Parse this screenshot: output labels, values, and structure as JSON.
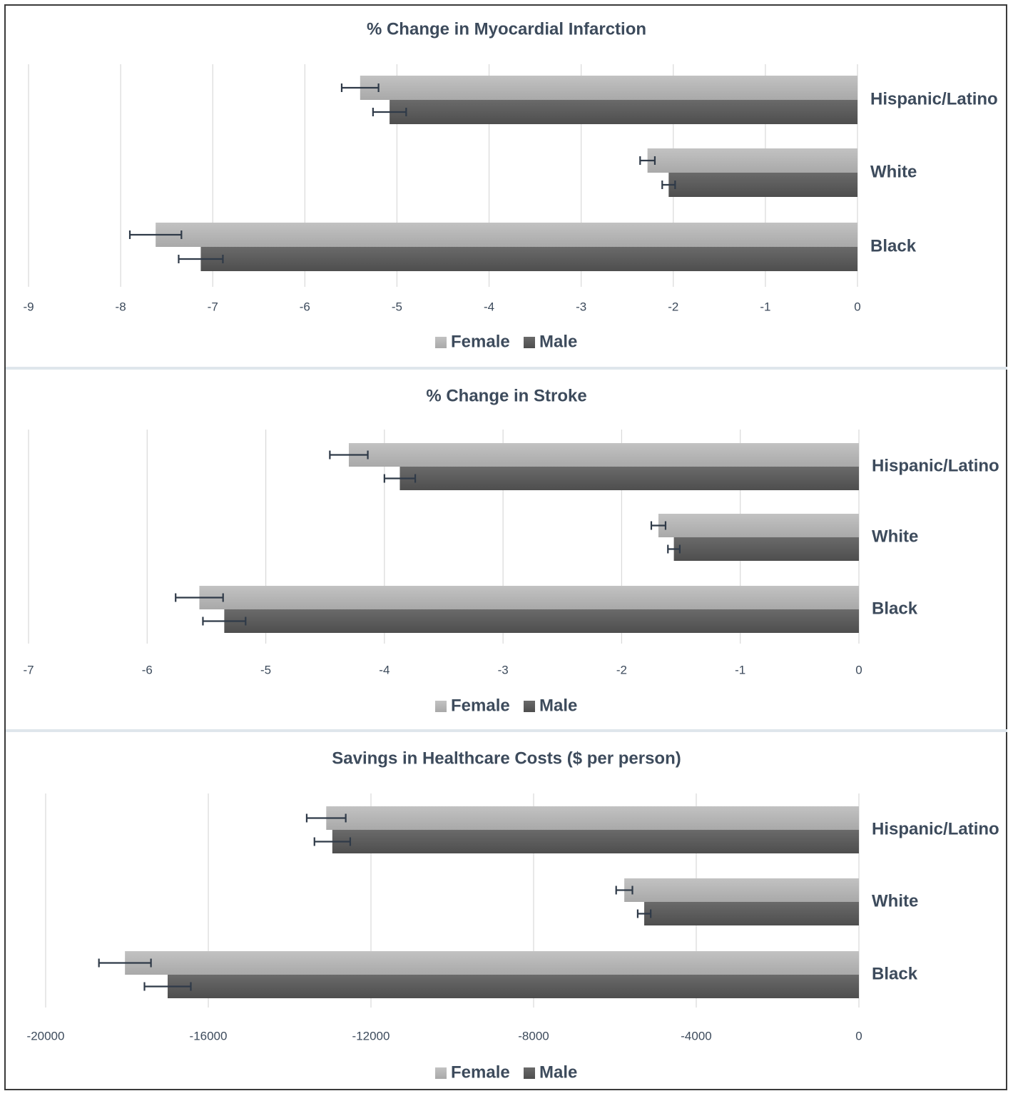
{
  "chart_data": [
    {
      "type": "bar",
      "orientation": "horizontal",
      "title": "% Change in Myocardial Infarction",
      "categories": [
        "Hispanic/Latino",
        "White",
        "Black"
      ],
      "series": [
        {
          "name": "Female",
          "values": [
            -5.4,
            -2.28,
            -7.62
          ],
          "error": [
            0.2,
            0.08,
            0.28
          ],
          "color": "#b4b4b4"
        },
        {
          "name": "Male",
          "values": [
            -5.08,
            -2.05,
            -7.13
          ],
          "error": [
            0.18,
            0.07,
            0.24
          ],
          "color": "#5c5c5c"
        }
      ],
      "xlim": [
        -9,
        0
      ],
      "xticks": [
        "-9",
        "-8",
        "-7",
        "-6",
        "-5",
        "-4",
        "-3",
        "-2",
        "-1",
        "0"
      ],
      "grid": true,
      "legend_position": "bottom"
    },
    {
      "type": "bar",
      "orientation": "horizontal",
      "title": "% Change in Stroke",
      "categories": [
        "Hispanic/Latino",
        "White",
        "Black"
      ],
      "series": [
        {
          "name": "Female",
          "values": [
            -4.3,
            -1.69,
            -5.56
          ],
          "error": [
            0.16,
            0.06,
            0.2
          ],
          "color": "#b4b4b4"
        },
        {
          "name": "Male",
          "values": [
            -3.87,
            -1.56,
            -5.35
          ],
          "error": [
            0.13,
            0.05,
            0.18
          ],
          "color": "#5c5c5c"
        }
      ],
      "xlim": [
        -7,
        0
      ],
      "xticks": [
        "-7",
        "-6",
        "-5",
        "-4",
        "-3",
        "-2",
        "-1",
        "0"
      ],
      "grid": true,
      "legend_position": "bottom"
    },
    {
      "type": "bar",
      "orientation": "horizontal",
      "title": "Savings in Healthcare Costs ($ per person)",
      "categories": [
        "Hispanic/Latino",
        "White",
        "Black"
      ],
      "series": [
        {
          "name": "Female",
          "values": [
            -13100,
            -5770,
            -18050
          ],
          "error": [
            480,
            200,
            640
          ],
          "color": "#b4b4b4"
        },
        {
          "name": "Male",
          "values": [
            -12950,
            -5280,
            -17000
          ],
          "error": [
            440,
            160,
            570
          ],
          "color": "#5c5c5c"
        }
      ],
      "xlim": [
        -20000,
        0
      ],
      "xticks": [
        "-20000",
        "-16000",
        "-12000",
        "-8000",
        "-4000",
        "0"
      ],
      "grid": true,
      "legend_position": "bottom"
    }
  ]
}
